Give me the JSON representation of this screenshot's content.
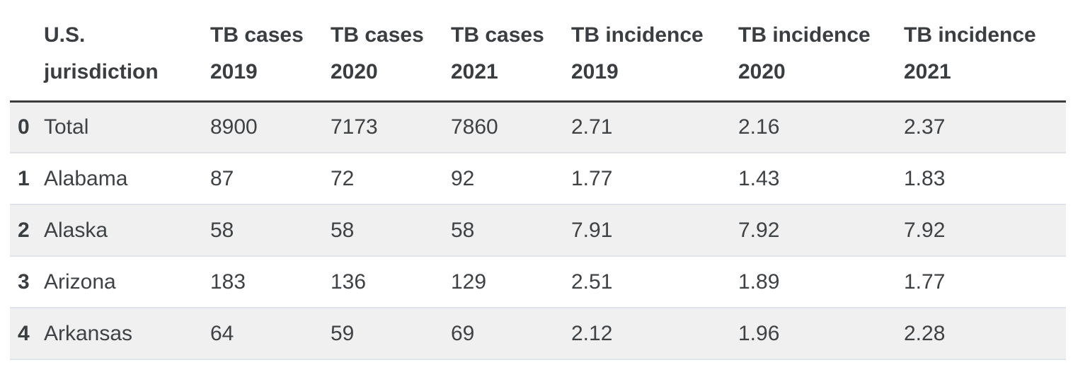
{
  "colors": {
    "text": "#3f4245",
    "header_text": "#3b3e40",
    "header_rule": "#3a3c3e",
    "row_stripe": "#f0f0f0",
    "row_separator": "#e0e4e8",
    "background": "#ffffff"
  },
  "table": {
    "index_header": "",
    "columns": [
      "U.S. jurisdiction",
      "TB cases 2019",
      "TB cases 2020",
      "TB cases 2021",
      "TB incidence 2019",
      "TB incidence 2020",
      "TB incidence 2021"
    ],
    "rows": [
      {
        "index": "0",
        "cells": [
          "Total",
          "8900",
          "7173",
          "7860",
          "2.71",
          "2.16",
          "2.37"
        ]
      },
      {
        "index": "1",
        "cells": [
          "Alabama",
          "87",
          "72",
          "92",
          "1.77",
          "1.43",
          "1.83"
        ]
      },
      {
        "index": "2",
        "cells": [
          "Alaska",
          "58",
          "58",
          "58",
          "7.91",
          "7.92",
          "7.92"
        ]
      },
      {
        "index": "3",
        "cells": [
          "Arizona",
          "183",
          "136",
          "129",
          "2.51",
          "1.89",
          "1.77"
        ]
      },
      {
        "index": "4",
        "cells": [
          "Arkansas",
          "64",
          "59",
          "69",
          "2.12",
          "1.96",
          "2.28"
        ]
      }
    ]
  },
  "chart_data": {
    "type": "table",
    "title": "",
    "columns": [
      "index",
      "U.S. jurisdiction",
      "TB cases 2019",
      "TB cases 2020",
      "TB cases 2021",
      "TB incidence 2019",
      "TB incidence 2020",
      "TB incidence 2021"
    ],
    "rows": [
      [
        0,
        "Total",
        8900,
        7173,
        7860,
        2.71,
        2.16,
        2.37
      ],
      [
        1,
        "Alabama",
        87,
        72,
        92,
        1.77,
        1.43,
        1.83
      ],
      [
        2,
        "Alaska",
        58,
        58,
        58,
        7.91,
        7.92,
        7.92
      ],
      [
        3,
        "Arizona",
        183,
        136,
        129,
        2.51,
        1.89,
        1.77
      ],
      [
        4,
        "Arkansas",
        64,
        59,
        69,
        2.12,
        1.96,
        2.28
      ]
    ],
    "layout_hints": {
      "striped_rows": true,
      "stripe_start_row": 0,
      "header_bold": true,
      "values_alignment": "left"
    }
  }
}
